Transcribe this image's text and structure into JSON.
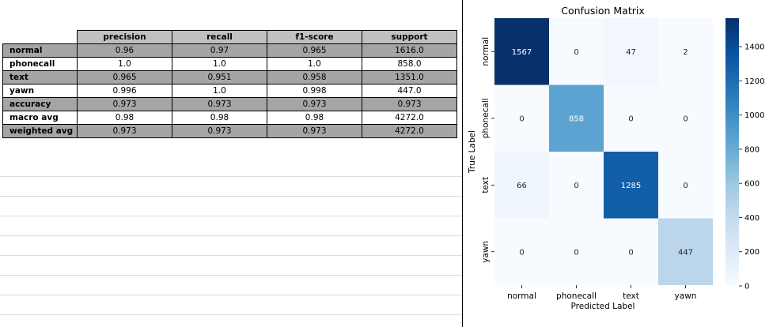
{
  "chart_data": [
    {
      "type": "table",
      "columns": [
        "precision",
        "recall",
        "f1-score",
        "support"
      ],
      "rows": [
        {
          "label": "normal",
          "values": [
            "0.96",
            "0.97",
            "0.965",
            "1616.0"
          ],
          "shaded": true
        },
        {
          "label": "phonecall",
          "values": [
            "1.0",
            "1.0",
            "1.0",
            "858.0"
          ],
          "shaded": false
        },
        {
          "label": "text",
          "values": [
            "0.965",
            "0.951",
            "0.958",
            "1351.0"
          ],
          "shaded": true
        },
        {
          "label": "yawn",
          "values": [
            "0.996",
            "1.0",
            "0.998",
            "447.0"
          ],
          "shaded": false
        },
        {
          "label": "accuracy",
          "values": [
            "0.973",
            "0.973",
            "0.973",
            "0.973"
          ],
          "shaded": true
        },
        {
          "label": "macro avg",
          "values": [
            "0.98",
            "0.98",
            "0.98",
            "4272.0"
          ],
          "shaded": false
        },
        {
          "label": "weighted avg",
          "values": [
            "0.973",
            "0.973",
            "0.973",
            "4272.0"
          ],
          "shaded": true
        }
      ]
    },
    {
      "type": "heatmap",
      "title": "Confusion Matrix",
      "xlabel": "Predicted Label",
      "ylabel": "True Label",
      "x_categories": [
        "normal",
        "phonecall",
        "text",
        "yawn"
      ],
      "y_categories": [
        "normal",
        "phonecall",
        "text",
        "yawn"
      ],
      "values": [
        [
          1567,
          0,
          47,
          2
        ],
        [
          0,
          858,
          0,
          0
        ],
        [
          66,
          0,
          1285,
          0
        ],
        [
          0,
          0,
          0,
          447
        ]
      ],
      "colormap": "Blues",
      "colorbar_range": [
        0,
        1567
      ],
      "colorbar_ticks": [
        0,
        200,
        400,
        600,
        800,
        1000,
        1200,
        1400
      ]
    }
  ]
}
